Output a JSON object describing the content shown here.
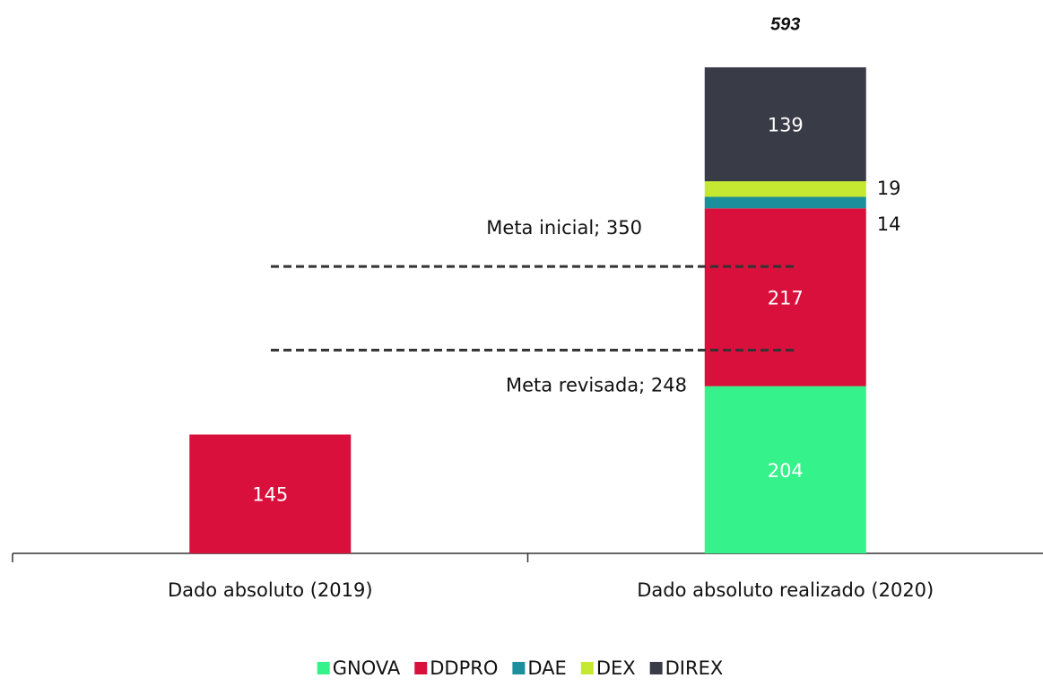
{
  "chart_data": {
    "type": "stacked_bar",
    "categories": [
      "Dado absoluto (2019)",
      "Dado absoluto realizado (2020)"
    ],
    "series": [
      {
        "name": "GNOVA",
        "color": "#35f28a",
        "values": [
          null,
          204
        ]
      },
      {
        "name": "DDPRO",
        "color": "#d9103c",
        "values": [
          145,
          217
        ]
      },
      {
        "name": "DAE",
        "color": "#1b8f9b",
        "values": [
          null,
          14
        ]
      },
      {
        "name": "DEX",
        "color": "#c5e830",
        "values": [
          null,
          19
        ]
      },
      {
        "name": "DIREX",
        "color": "#393b47",
        "values": [
          null,
          139
        ]
      }
    ],
    "totals": [
      null,
      593
    ],
    "reference_lines": [
      {
        "label": "Meta inicial; 350",
        "value": 350
      },
      {
        "label": "Meta revisada; 248",
        "value": 248
      }
    ],
    "ylim": [
      0,
      650
    ],
    "legend": "bottom"
  }
}
